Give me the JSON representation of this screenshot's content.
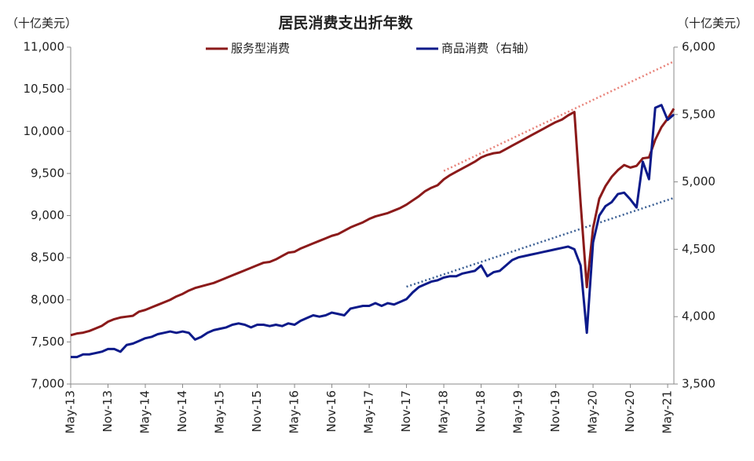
{
  "chart_data": {
    "type": "line",
    "title": "居民消费支出折年数",
    "y_label": "（十亿美元）",
    "y2_label": "（十亿美元）",
    "categories": [
      "May-13",
      null,
      null,
      null,
      null,
      null,
      "Nov-13",
      null,
      null,
      null,
      null,
      null,
      "May-14",
      null,
      null,
      null,
      null,
      null,
      "Nov-14",
      null,
      null,
      null,
      null,
      null,
      "May-15",
      null,
      null,
      null,
      null,
      null,
      "Nov-15",
      null,
      null,
      null,
      null,
      null,
      "May-16",
      null,
      null,
      null,
      null,
      null,
      "Nov-16",
      null,
      null,
      null,
      null,
      null,
      "May-17",
      null,
      null,
      null,
      null,
      null,
      "Nov-17",
      null,
      null,
      null,
      null,
      null,
      "May-18",
      null,
      null,
      null,
      null,
      null,
      "Nov-18",
      null,
      null,
      null,
      null,
      null,
      "May-19",
      null,
      null,
      null,
      null,
      null,
      "Nov-19",
      null,
      null,
      null,
      null,
      null,
      "May-20",
      null,
      null,
      null,
      null,
      null,
      "Nov-20",
      null,
      null,
      null,
      null,
      null,
      "May-21",
      null
    ],
    "series": [
      {
        "name": "服务型消费",
        "color": "#8b1a1a",
        "axis": "y",
        "values": [
          7580,
          7600,
          7610,
          7630,
          7660,
          7690,
          7740,
          7770,
          7790,
          7800,
          7810,
          7860,
          7880,
          7910,
          7940,
          7970,
          8000,
          8040,
          8070,
          8110,
          8140,
          8160,
          8180,
          8200,
          8230,
          8260,
          8290,
          8320,
          8350,
          8380,
          8410,
          8440,
          8450,
          8480,
          8520,
          8560,
          8570,
          8610,
          8640,
          8670,
          8700,
          8730,
          8760,
          8780,
          8820,
          8860,
          8890,
          8920,
          8960,
          8990,
          9010,
          9030,
          9060,
          9090,
          9130,
          9180,
          9230,
          9290,
          9330,
          9360,
          9430,
          9480,
          9520,
          9560,
          9600,
          9640,
          9690,
          9720,
          9740,
          9750,
          9790,
          9830,
          9870,
          9910,
          9950,
          9990,
          10030,
          10070,
          10110,
          10140,
          10190,
          10230,
          9150,
          8150,
          8850,
          9200,
          9350,
          9460,
          9540,
          9600,
          9570,
          9590,
          9680,
          9690,
          9900,
          10050,
          10150,
          10270
        ]
      },
      {
        "name": "商品消费（右轴）",
        "color": "#0c1a8a",
        "axis": "y2",
        "values": [
          3700,
          3700,
          3720,
          3720,
          3730,
          3740,
          3760,
          3760,
          3740,
          3790,
          3800,
          3820,
          3840,
          3850,
          3870,
          3880,
          3890,
          3880,
          3890,
          3880,
          3830,
          3850,
          3880,
          3900,
          3910,
          3920,
          3940,
          3950,
          3940,
          3920,
          3940,
          3940,
          3930,
          3940,
          3930,
          3950,
          3940,
          3970,
          3990,
          4010,
          4000,
          4010,
          4030,
          4020,
          4010,
          4060,
          4070,
          4080,
          4080,
          4100,
          4080,
          4100,
          4090,
          4110,
          4130,
          4180,
          4220,
          4240,
          4260,
          4270,
          4290,
          4300,
          4300,
          4320,
          4330,
          4340,
          4380,
          4300,
          4330,
          4340,
          4380,
          4420,
          4440,
          4450,
          4460,
          4470,
          4480,
          4490,
          4500,
          4510,
          4520,
          4500,
          4380,
          3880,
          4550,
          4750,
          4820,
          4850,
          4910,
          4920,
          4870,
          4810,
          5150,
          5020,
          5550,
          5570,
          5460,
          5500
        ]
      }
    ],
    "trend_lines": [
      {
        "color": "#e8837a",
        "axis": "y",
        "x": [
          "May-18",
          97
        ],
        "values": [
          9530,
          10830
        ]
      },
      {
        "color": "#3b5f94",
        "axis": "y2",
        "x": [
          "Nov-17",
          97
        ],
        "values": [
          4222,
          4881
        ]
      }
    ],
    "ylim": [
      7000,
      11000
    ],
    "yticks": [
      {
        "value": 7000,
        "label": "7,000"
      },
      {
        "value": 7500,
        "label": "7,500"
      },
      {
        "value": 8000,
        "label": "8,000"
      },
      {
        "value": 8500,
        "label": "8,500"
      },
      {
        "value": 9000,
        "label": "9,000"
      },
      {
        "value": 9500,
        "label": "9,500"
      },
      {
        "value": 10000,
        "label": "10,000"
      },
      {
        "value": 10500,
        "label": "10,500"
      },
      {
        "value": 11000,
        "label": "11,000"
      }
    ],
    "y2lim": [
      3500,
      6000
    ],
    "y2ticks": [
      {
        "value": 3500,
        "label": "3,500"
      },
      {
        "value": 4000,
        "label": "4,000"
      },
      {
        "value": 4500,
        "label": "4,500"
      },
      {
        "value": 5000,
        "label": "5,000"
      },
      {
        "value": 5500,
        "label": "5,500"
      },
      {
        "value": 6000,
        "label": "6,000"
      }
    ]
  }
}
